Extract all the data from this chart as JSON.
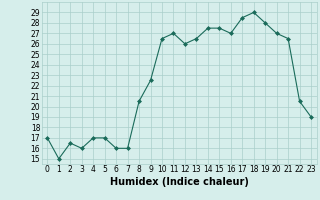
{
  "x": [
    0,
    1,
    2,
    3,
    4,
    5,
    6,
    7,
    8,
    9,
    10,
    11,
    12,
    13,
    14,
    15,
    16,
    17,
    18,
    19,
    20,
    21,
    22,
    23
  ],
  "y": [
    17,
    15,
    16.5,
    16,
    17,
    17,
    16,
    16,
    20.5,
    22.5,
    26.5,
    27,
    26,
    26.5,
    27.5,
    27.5,
    27,
    28.5,
    29,
    28,
    27,
    26.5,
    20.5,
    19
  ],
  "line_color": "#1a6b5a",
  "marker": "D",
  "marker_size": 2,
  "bg_color": "#d6eeeb",
  "grid_color": "#aacfca",
  "xlabel": "Humidex (Indice chaleur)",
  "xlim": [
    -0.5,
    23.5
  ],
  "ylim": [
    14.5,
    30
  ],
  "yticks": [
    15,
    16,
    17,
    18,
    19,
    20,
    21,
    22,
    23,
    24,
    25,
    26,
    27,
    28,
    29
  ],
  "xticks": [
    0,
    1,
    2,
    3,
    4,
    5,
    6,
    7,
    8,
    9,
    10,
    11,
    12,
    13,
    14,
    15,
    16,
    17,
    18,
    19,
    20,
    21,
    22,
    23
  ],
  "tick_fontsize": 5.5,
  "label_fontsize": 7
}
